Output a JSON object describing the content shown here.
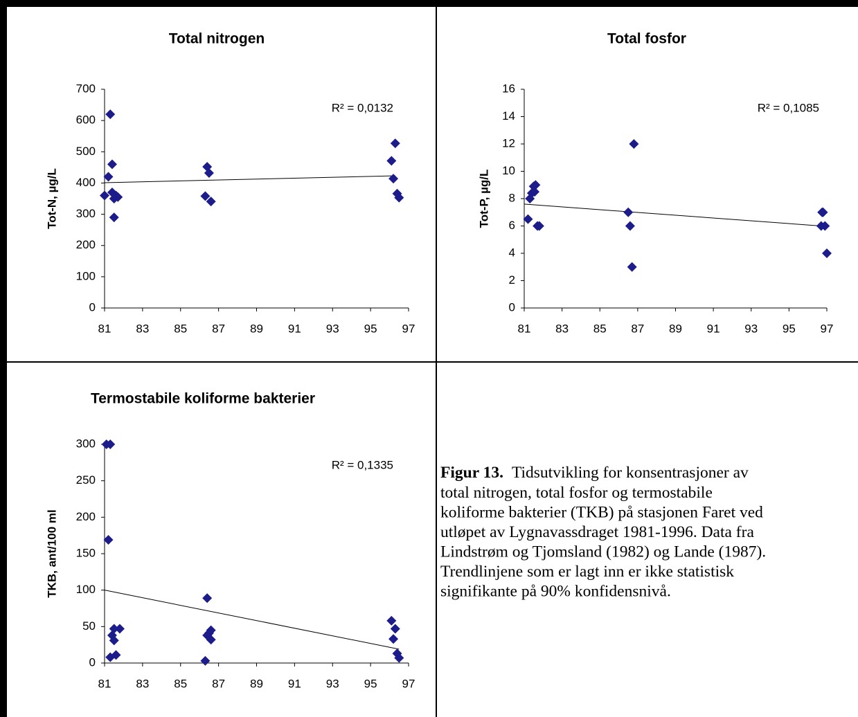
{
  "chart_data": [
    {
      "type": "scatter",
      "title": "Total nitrogen",
      "y_label": "Tot-N, µg/L",
      "annotation": "R² = 0,0132",
      "color": "#1c1c8a",
      "x": [
        81.0,
        81.2,
        81.3,
        81.4,
        81.4,
        81.5,
        81.5,
        81.6,
        81.7,
        86.3,
        86.4,
        86.5,
        86.6,
        96.1,
        96.3,
        96.2,
        96.4,
        96.5
      ],
      "values": [
        360,
        420,
        620,
        370,
        460,
        350,
        290,
        360,
        355,
        358,
        452,
        432,
        341,
        471,
        527,
        414,
        366,
        353
      ],
      "trendline": {
        "x": [
          81,
          96.3
        ],
        "y": [
          401,
          423
        ]
      },
      "xlim": [
        81,
        97
      ],
      "xticks": [
        81,
        83,
        85,
        87,
        89,
        91,
        93,
        95,
        97
      ],
      "ylim": [
        0,
        700
      ],
      "yticks": [
        0,
        100,
        200,
        300,
        400,
        500,
        600,
        700
      ]
    },
    {
      "type": "scatter",
      "title": "Total fosfor",
      "y_label": "Tot-P, µg/L",
      "annotation": "R² = 0,1085",
      "color": "#1c1c8a",
      "x": [
        81.2,
        81.3,
        81.4,
        81.5,
        81.55,
        81.6,
        81.7,
        81.8,
        86.5,
        86.6,
        86.7,
        86.8,
        96.7,
        96.8,
        96.75,
        96.9,
        97.0
      ],
      "values": [
        6.5,
        8,
        8.4,
        8.9,
        8.5,
        9.0,
        6.0,
        6.0,
        7.0,
        6.0,
        3.0,
        12.0,
        6,
        7,
        7,
        6,
        4
      ],
      "trendline": {
        "x": [
          81,
          96.7
        ],
        "y": [
          7.6,
          6.0
        ]
      },
      "xlim": [
        81,
        97
      ],
      "xticks": [
        81,
        83,
        85,
        87,
        89,
        91,
        93,
        95,
        97
      ],
      "ylim": [
        0,
        16
      ],
      "yticks": [
        0,
        2,
        4,
        6,
        8,
        10,
        12,
        14,
        16
      ]
    },
    {
      "type": "scatter",
      "title": "Termostabile koliforme bakterier",
      "y_label": "TKB, ant/100 ml",
      "annotation": "R² = 0,1335",
      "color": "#1c1c8a",
      "x": [
        81.1,
        81.3,
        81.2,
        81.3,
        81.4,
        81.5,
        81.5,
        81.6,
        81.8,
        86.3,
        86.4,
        86.4,
        86.5,
        86.6,
        86.6,
        96.1,
        96.2,
        96.3,
        96.4,
        96.5
      ],
      "values": [
        300,
        300,
        169,
        8,
        38,
        47,
        31,
        11,
        47,
        3,
        38,
        89,
        41,
        32,
        45,
        58,
        33,
        47,
        13,
        7
      ],
      "trendline": {
        "x": [
          81,
          96.5
        ],
        "y": [
          100,
          19
        ]
      },
      "xlim": [
        81,
        97
      ],
      "xticks": [
        81,
        83,
        85,
        87,
        89,
        91,
        93,
        95,
        97
      ],
      "ylim": [
        0,
        300
      ],
      "yticks": [
        0,
        50,
        100,
        150,
        200,
        250,
        300
      ]
    }
  ],
  "caption": {
    "label": "Figur 13.",
    "lines": [
      "Tidsutvikling for konsentrasjoner av",
      "total nitrogen, total fosfor og termostabile",
      "koliforme bakterier (TKB) på stasjonen Faret ved",
      "utløpet av Lygnavassdraget 1981-1996. Data fra",
      "Lindstrøm og Tjomsland (1982) og Lande (1987).",
      "Trendlinjene som er lagt inn er ikke statistisk",
      "signifikante på 90% konfidensnivå."
    ]
  }
}
